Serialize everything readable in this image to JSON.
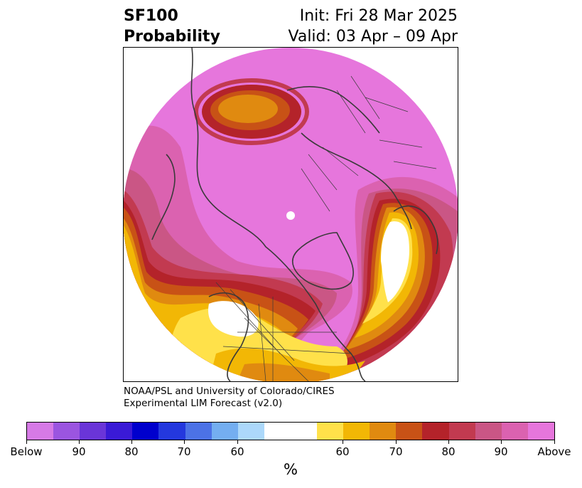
{
  "header": {
    "title_line1": "SF100",
    "title_line2": "Probability",
    "init": "Init: Fri 28 Mar 2025",
    "valid": "Valid: 03 Apr – 09 Apr"
  },
  "credit": {
    "line1": "NOAA/PSL and University of Colorado/CIRES",
    "line2": "Experimental LIM Forecast (v2.0)"
  },
  "colorbar": {
    "colors": [
      "#d67ae6",
      "#9b55e0",
      "#6a35d8",
      "#3a1ad6",
      "#0000cd",
      "#2438de",
      "#4c72e6",
      "#74aef0",
      "#acd8fa",
      "#ffffff",
      "#ffe14a",
      "#f2b705",
      "#e08a10",
      "#c85216",
      "#b4232a",
      "#c23a50",
      "#ca5685",
      "#db62b0",
      "#e676dc"
    ],
    "tick_labels": [
      "Below",
      "90",
      "80",
      "70",
      "60",
      "60",
      "70",
      "80",
      "90",
      "Above"
    ],
    "units": "%"
  },
  "map": {
    "shading": {
      "above_high": "#e676dc",
      "above_90": "#db62b0",
      "above_85": "#ca5685",
      "above_80": "#c23a50",
      "above_75": "#b4232a",
      "above_70": "#c85216",
      "above_65": "#e08a10",
      "above_60": "#f2b705",
      "above_55": "#ffe14a",
      "neutral": "#ffffff"
    },
    "border_color": "#3a3a3a"
  }
}
